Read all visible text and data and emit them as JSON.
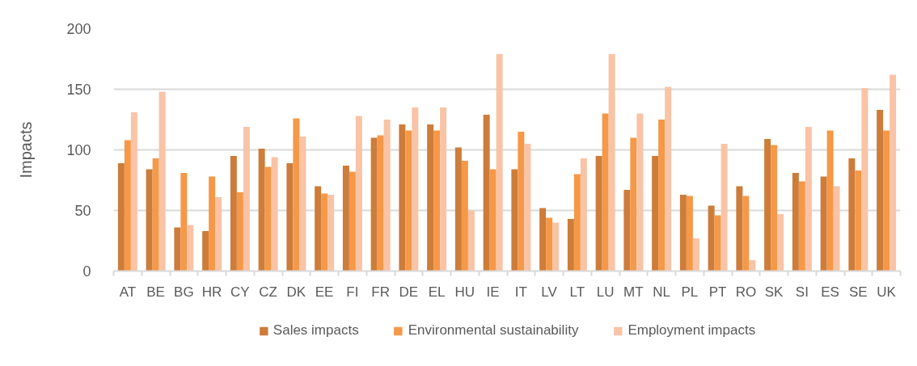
{
  "chart_data": {
    "type": "bar",
    "ylabel": "Impacts",
    "categories": [
      "AT",
      "BE",
      "BG",
      "HR",
      "CY",
      "CZ",
      "DK",
      "EE",
      "FI",
      "FR",
      "DE",
      "EL",
      "HU",
      "IE",
      "IT",
      "LV",
      "LT",
      "LU",
      "MT",
      "NL",
      "PL",
      "PT",
      "RO",
      "SK",
      "SI",
      "ES",
      "SE",
      "UK"
    ],
    "series": [
      {
        "name": "Sales impacts",
        "color": "#cd7c3a",
        "values": [
          89,
          84,
          36,
          33,
          95,
          101,
          89,
          70,
          87,
          110,
          121,
          121,
          102,
          129,
          84,
          52,
          43,
          95,
          67,
          95,
          63,
          54,
          70,
          109,
          81,
          78,
          93,
          133
        ]
      },
      {
        "name": "Environmental sustainability",
        "color": "#f59847",
        "values": [
          108,
          93,
          81,
          78,
          65,
          86,
          126,
          64,
          82,
          112,
          116,
          116,
          91,
          84,
          115,
          44,
          80,
          130,
          110,
          125,
          62,
          46,
          62,
          104,
          74,
          116,
          83,
          116
        ]
      },
      {
        "name": "Employment impacts",
        "color": "#f9c3a6",
        "values": [
          131,
          148,
          38,
          61,
          119,
          94,
          111,
          63,
          128,
          125,
          135,
          135,
          50,
          179,
          105,
          40,
          93,
          179,
          130,
          152,
          27,
          105,
          9,
          47,
          119,
          70,
          151,
          162
        ]
      }
    ],
    "ylim": [
      0,
      200
    ],
    "yticks": [
      0,
      50,
      100,
      150,
      200
    ],
    "grid": "y",
    "legend": "bottom"
  }
}
